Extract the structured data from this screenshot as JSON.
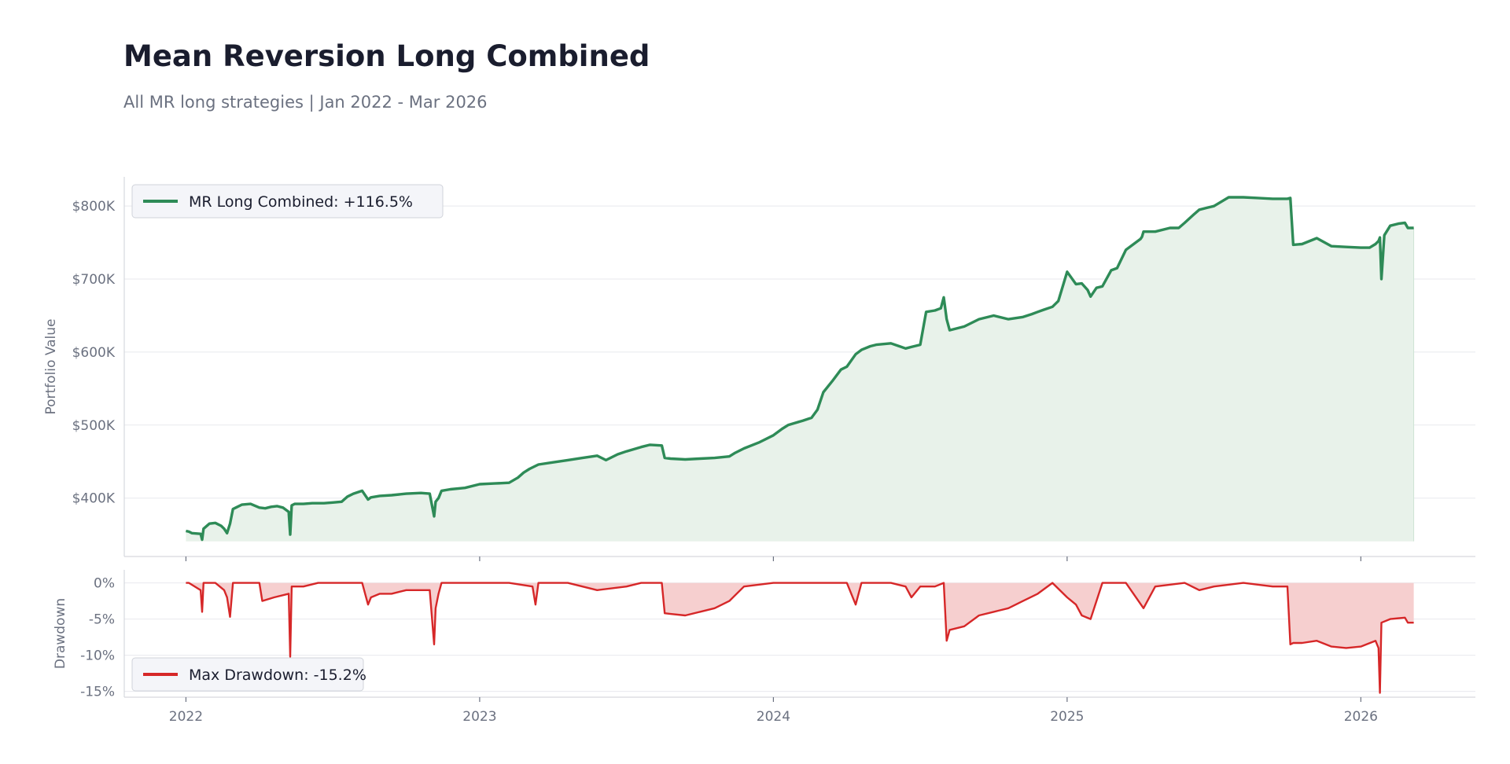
{
  "header": {
    "title": "Mean Reversion Long Combined",
    "subtitle": "All MR long strategies | Jan 2022 - Mar 2026"
  },
  "chart_data": [
    {
      "type": "area",
      "ylabel": "Portfolio Value",
      "ylim": [
        320000,
        840000
      ],
      "yticks": [
        400000,
        500000,
        600000,
        700000,
        800000
      ],
      "ytick_labels": [
        "$400K",
        "$500K",
        "$600K",
        "$700K",
        "$800K"
      ],
      "xlim": [
        2021.79,
        2026.39
      ],
      "grid": true,
      "legend_position": "top-left",
      "colors": {
        "line": "#2e8b57",
        "fill": "#e8f2ea"
      },
      "series": [
        {
          "name": "MR Long Combined: +116.5%",
          "x": [
            2022.0,
            2022.01,
            2022.02,
            2022.05,
            2022.055,
            2022.06,
            2022.08,
            2022.1,
            2022.12,
            2022.13,
            2022.14,
            2022.15,
            2022.16,
            2022.17,
            2022.19,
            2022.22,
            2022.25,
            2022.27,
            2022.29,
            2022.31,
            2022.33,
            2022.35,
            2022.355,
            2022.36,
            2022.37,
            2022.4,
            2022.43,
            2022.45,
            2022.47,
            2022.5,
            2022.53,
            2022.55,
            2022.57,
            2022.6,
            2022.62,
            2022.63,
            2022.66,
            2022.7,
            2022.75,
            2022.8,
            2022.83,
            2022.845,
            2022.85,
            2022.86,
            2022.87,
            2022.9,
            2022.95,
            2023.0,
            2023.05,
            2023.1,
            2023.13,
            2023.15,
            2023.17,
            2023.2,
            2023.25,
            2023.3,
            2023.35,
            2023.4,
            2023.43,
            2023.47,
            2023.5,
            2023.55,
            2023.58,
            2023.62,
            2023.63,
            2023.65,
            2023.7,
            2023.75,
            2023.8,
            2023.85,
            2023.87,
            2023.9,
            2023.95,
            2024.0,
            2024.03,
            2024.05,
            2024.1,
            2024.13,
            2024.15,
            2024.17,
            2024.2,
            2024.23,
            2024.25,
            2024.28,
            2024.3,
            2024.33,
            2024.35,
            2024.4,
            2024.45,
            2024.47,
            2024.5,
            2024.52,
            2024.55,
            2024.57,
            2024.58,
            2024.59,
            2024.6,
            2024.65,
            2024.7,
            2024.75,
            2024.8,
            2024.85,
            2024.88,
            2024.9,
            2024.92,
            2024.95,
            2024.97,
            2025.0,
            2025.03,
            2025.05,
            2025.07,
            2025.08,
            2025.1,
            2025.12,
            2025.15,
            2025.17,
            2025.2,
            2025.25,
            2025.255,
            2025.26,
            2025.3,
            2025.35,
            2025.38,
            2025.4,
            2025.43,
            2025.45,
            2025.48,
            2025.5,
            2025.55,
            2025.6,
            2025.65,
            2025.7,
            2025.75,
            2025.76,
            2025.77,
            2025.8,
            2025.85,
            2025.9,
            2025.95,
            2026.0,
            2026.03,
            2026.05,
            2026.06,
            2026.065,
            2026.07,
            2026.08,
            2026.1,
            2026.13,
            2026.15,
            2026.16,
            2026.18
          ],
          "values": [
            355000,
            354000,
            352000,
            351000,
            343000,
            358000,
            365000,
            366000,
            362000,
            358000,
            352000,
            365000,
            385000,
            387000,
            391000,
            392000,
            387000,
            386000,
            388000,
            389000,
            387000,
            381000,
            350000,
            390000,
            392000,
            392000,
            393000,
            393000,
            393000,
            394000,
            395000,
            402000,
            406000,
            410000,
            398000,
            401000,
            403000,
            404000,
            406000,
            407000,
            406000,
            375000,
            395000,
            400000,
            410000,
            412000,
            414000,
            419000,
            420000,
            421000,
            428000,
            435000,
            440000,
            446000,
            449000,
            452000,
            455000,
            458000,
            452000,
            460000,
            464000,
            470000,
            473000,
            472000,
            455000,
            454000,
            453000,
            454000,
            455000,
            457000,
            462000,
            468000,
            476000,
            486000,
            495000,
            500000,
            506000,
            510000,
            521000,
            545000,
            560000,
            576000,
            580000,
            597000,
            603000,
            608000,
            610000,
            612000,
            605000,
            607000,
            610000,
            655000,
            657000,
            660000,
            675000,
            645000,
            630000,
            635000,
            645000,
            650000,
            645000,
            648000,
            652000,
            655000,
            658000,
            662000,
            670000,
            710000,
            693000,
            694000,
            685000,
            676000,
            688000,
            690000,
            712000,
            715000,
            740000,
            755000,
            758000,
            765000,
            765000,
            770000,
            770000,
            777000,
            788000,
            795000,
            798000,
            800000,
            812000,
            812000,
            811000,
            810000,
            810000,
            811000,
            747000,
            748000,
            756000,
            745000,
            744000,
            743000,
            743000,
            748000,
            752000,
            757000,
            700000,
            760000,
            773000,
            776000,
            777000,
            770000,
            770000
          ]
        }
      ]
    },
    {
      "type": "area",
      "ylabel": "Drawdown",
      "ylim": [
        -15.8,
        1.8
      ],
      "yticks": [
        0,
        -5,
        -10,
        -15
      ],
      "ytick_labels": [
        "0%",
        "-5%",
        "-10%",
        "-15%"
      ],
      "xlim": [
        2021.79,
        2026.39
      ],
      "xticks": [
        2022,
        2023,
        2024,
        2025,
        2026
      ],
      "xtick_labels": [
        "2022",
        "2023",
        "2024",
        "2025",
        "2026"
      ],
      "grid": true,
      "legend_position": "bottom-left",
      "colors": {
        "line": "#d62728",
        "fill": "#f6cccc"
      },
      "series": [
        {
          "name": "Max Drawdown: -15.2%",
          "x": [
            2022.0,
            2022.01,
            2022.05,
            2022.055,
            2022.06,
            2022.1,
            2022.13,
            2022.14,
            2022.15,
            2022.16,
            2022.2,
            2022.25,
            2022.26,
            2022.3,
            2022.35,
            2022.355,
            2022.36,
            2022.4,
            2022.45,
            2022.5,
            2022.55,
            2022.6,
            2022.62,
            2022.63,
            2022.66,
            2022.7,
            2022.75,
            2022.8,
            2022.83,
            2022.845,
            2022.85,
            2022.86,
            2022.87,
            2022.9,
            2022.95,
            2023.0,
            2023.1,
            2023.18,
            2023.19,
            2023.2,
            2023.3,
            2023.4,
            2023.5,
            2023.55,
            2023.62,
            2023.63,
            2023.65,
            2023.7,
            2023.75,
            2023.8,
            2023.85,
            2023.9,
            2024.0,
            2024.1,
            2024.2,
            2024.25,
            2024.28,
            2024.3,
            2024.4,
            2024.45,
            2024.47,
            2024.5,
            2024.55,
            2024.58,
            2024.59,
            2024.6,
            2024.65,
            2024.7,
            2024.75,
            2024.8,
            2024.85,
            2024.9,
            2024.95,
            2025.0,
            2025.03,
            2025.05,
            2025.08,
            2025.1,
            2025.12,
            2025.2,
            2025.26,
            2025.3,
            2025.4,
            2025.45,
            2025.5,
            2025.6,
            2025.7,
            2025.75,
            2025.76,
            2025.77,
            2025.8,
            2025.85,
            2025.9,
            2025.95,
            2026.0,
            2026.05,
            2026.06,
            2026.065,
            2026.07,
            2026.1,
            2026.15,
            2026.16,
            2026.18
          ],
          "values": [
            0,
            0,
            -1.0,
            -4.0,
            0,
            0,
            -1.0,
            -2.0,
            -4.7,
            0,
            0,
            0,
            -2.5,
            -2.0,
            -1.5,
            -10.2,
            -0.5,
            -0.5,
            0,
            0,
            0,
            0,
            -3.0,
            -2.0,
            -1.5,
            -1.5,
            -1.0,
            -1.0,
            -1.0,
            -8.5,
            -3.5,
            -1.5,
            0,
            0,
            0,
            0,
            0,
            -0.5,
            -3.0,
            0,
            0,
            -1.0,
            -0.5,
            0,
            0,
            -4.2,
            -4.3,
            -4.5,
            -4.0,
            -3.5,
            -2.5,
            -0.5,
            0,
            0,
            0,
            0,
            -3.0,
            0,
            0,
            -0.5,
            -2.0,
            -0.5,
            -0.5,
            0,
            -8.0,
            -6.5,
            -6.0,
            -4.5,
            -4.0,
            -3.5,
            -2.5,
            -1.5,
            0,
            -2.0,
            -3.0,
            -4.5,
            -5.0,
            -2.5,
            0,
            0,
            -3.5,
            -0.5,
            0,
            -1.0,
            -0.5,
            0,
            -0.5,
            -0.5,
            -8.5,
            -8.3,
            -8.3,
            -8.0,
            -8.8,
            -9.0,
            -8.8,
            -8.0,
            -9.0,
            -15.2,
            -5.5,
            -5.0,
            -4.8,
            -5.5,
            -5.5
          ]
        }
      ]
    }
  ]
}
